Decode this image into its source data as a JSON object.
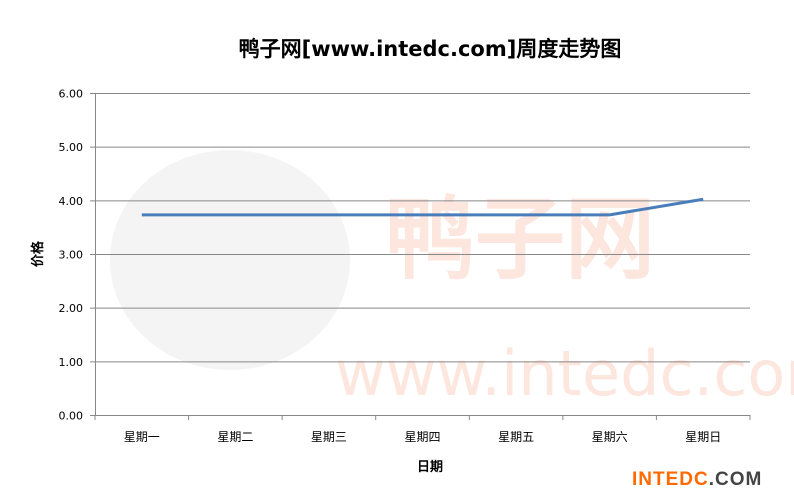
{
  "chart_data": {
    "type": "line",
    "title": "鸭子网[www.intedc.com]周度走势图",
    "xlabel": "日期",
    "ylabel": "价格",
    "categories": [
      "星期一",
      "星期二",
      "星期三",
      "星期四",
      "星期五",
      "星期六",
      "星期日"
    ],
    "series": [
      {
        "values": [
          3.73,
          3.73,
          3.73,
          3.73,
          3.73,
          3.73,
          4.02
        ],
        "color": "#4a7ebb"
      }
    ],
    "ylim": [
      0,
      6
    ],
    "yticks": [
      "0.00",
      "1.00",
      "2.00",
      "3.00",
      "4.00",
      "5.00",
      "6.00"
    ],
    "grid": true,
    "legend": "none"
  },
  "watermark": {
    "text": "鸭子网",
    "url": "www.intedc.com"
  },
  "logo": {
    "part1": "INTEDC",
    "part2": ".COM"
  }
}
